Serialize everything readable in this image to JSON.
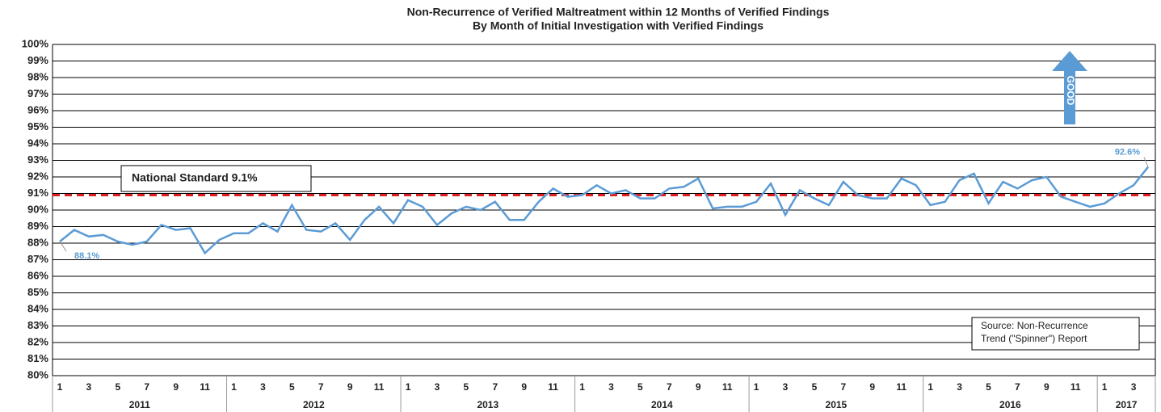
{
  "chart_data": {
    "type": "line",
    "title": "Non-Recurrence of Verified Maltreatment within 12 Months of Verified Findings",
    "subtitle": "By Month of Initial Investigation with Verified Findings",
    "categories": [
      "1",
      null,
      "3",
      null,
      "5",
      null,
      "7",
      null,
      "9",
      null,
      "11",
      null,
      "1",
      null,
      "3",
      null,
      "5",
      null,
      "7",
      null,
      "9",
      null,
      "11",
      null,
      "1",
      null,
      "3",
      null,
      "5",
      null,
      "7",
      null,
      "9",
      null,
      "11",
      null,
      "1",
      null,
      "3",
      null,
      "5",
      null,
      "7",
      null,
      "9",
      null,
      "11",
      null,
      "1",
      null,
      "3",
      null,
      "5",
      null,
      "7",
      null,
      "9",
      null,
      "11",
      null,
      "1",
      null,
      "3",
      null,
      "5",
      null,
      "7",
      null,
      "9",
      null,
      "11",
      null,
      "1",
      null,
      "3",
      null
    ],
    "years": [
      "2011",
      "2012",
      "2013",
      "2014",
      "2015",
      "2016",
      "2017"
    ],
    "series": [
      {
        "name": "Non-Recurrence",
        "color": "#5b9bd5",
        "values": [
          88.1,
          88.8,
          88.4,
          88.5,
          88.1,
          87.9,
          88.1,
          89.1,
          88.8,
          88.9,
          87.4,
          88.2,
          88.6,
          88.6,
          89.2,
          88.7,
          90.3,
          88.8,
          88.7,
          89.2,
          88.2,
          89.4,
          90.2,
          89.2,
          90.6,
          90.2,
          89.1,
          89.8,
          90.2,
          90.0,
          90.5,
          89.4,
          89.4,
          90.5,
          91.3,
          90.8,
          90.9,
          91.5,
          91.0,
          91.2,
          90.7,
          90.7,
          91.3,
          91.4,
          91.9,
          90.1,
          90.2,
          90.2,
          90.5,
          91.6,
          89.7,
          91.2,
          90.7,
          90.3,
          91.7,
          90.9,
          90.7,
          90.7,
          91.9,
          91.5,
          90.3,
          90.5,
          91.8,
          92.2,
          90.4,
          91.7,
          91.3,
          91.8,
          92.0,
          90.8,
          90.5,
          90.2,
          90.4,
          91.0,
          91.5,
          92.6
        ],
        "value_labels": [
          "88.1%",
          null,
          null,
          null,
          null,
          null,
          null,
          null,
          null,
          null,
          null,
          null,
          null,
          null,
          null,
          null,
          null,
          null,
          null,
          null,
          null,
          null,
          null,
          null,
          null,
          null,
          null,
          null,
          null,
          null,
          null,
          null,
          null,
          null,
          null,
          null,
          null,
          null,
          null,
          null,
          null,
          null,
          null,
          null,
          null,
          null,
          null,
          null,
          null,
          null,
          null,
          null,
          null,
          null,
          null,
          null,
          null,
          null,
          null,
          null,
          null,
          null,
          null,
          null,
          null,
          null,
          null,
          null,
          null,
          null,
          null,
          null,
          null,
          null,
          null,
          "92.6%"
        ]
      }
    ],
    "reference_line": {
      "label": "National Standard 9.1%",
      "value": 90.9,
      "color": "#e02020"
    },
    "ylim": [
      80,
      100
    ],
    "yticks": [
      {
        "value": 80,
        "label": "80%"
      },
      {
        "value": 81,
        "label": "81%"
      },
      {
        "value": 82,
        "label": "82%"
      },
      {
        "value": 83,
        "label": "83%"
      },
      {
        "value": 84,
        "label": "84%"
      },
      {
        "value": 85,
        "label": "85%"
      },
      {
        "value": 86,
        "label": "86%"
      },
      {
        "value": 87,
        "label": "87%"
      },
      {
        "value": 88,
        "label": "88%"
      },
      {
        "value": 89,
        "label": "89%"
      },
      {
        "value": 90,
        "label": "90%"
      },
      {
        "value": 91,
        "label": "91%"
      },
      {
        "value": 92,
        "label": "92%"
      },
      {
        "value": 93,
        "label": "93%"
      },
      {
        "value": 94,
        "label": "94%"
      },
      {
        "value": 95,
        "label": "95%"
      },
      {
        "value": 96,
        "label": "96%"
      },
      {
        "value": 97,
        "label": "97%"
      },
      {
        "value": 98,
        "label": "98%"
      },
      {
        "value": 99,
        "label": "99%"
      },
      {
        "value": 100,
        "label": "100%"
      }
    ],
    "grid": true,
    "annotations": {
      "arrow": "GOOD",
      "source": [
        "Source: Non-Recurrence",
        "Trend (\"Spinner\") Report"
      ]
    }
  }
}
